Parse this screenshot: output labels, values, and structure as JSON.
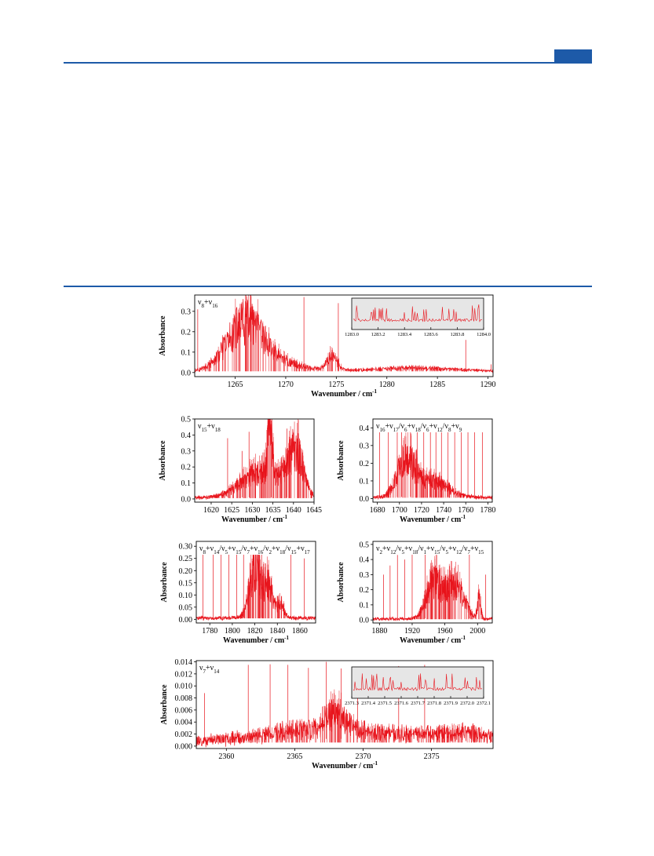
{
  "page": {
    "accent_color": "#1d5aa8",
    "trace_color": "#e8141c",
    "inset_fill": "#e6e6e6"
  },
  "chart_data": [
    {
      "type": "line",
      "band_label": "ν8+ν16",
      "ylabel": "Absorbance",
      "xlabel": "Wavenumber / cm-1",
      "xlim": [
        1261,
        1290.5
      ],
      "ylim": [
        -0.02,
        0.38
      ],
      "xticks": [
        1265,
        1270,
        1275,
        1280,
        1285,
        1290
      ],
      "yticks": [
        0.0,
        0.1,
        0.2,
        0.3
      ],
      "y_precision": 1,
      "baseline": 0.012,
      "noise": 0.008,
      "envelopes": [
        {
          "center": 1265.9,
          "width": 1.7,
          "height": 0.31
        },
        {
          "center": 1268.5,
          "width": 2.5,
          "height": 0.07
        },
        {
          "center": 1274.6,
          "width": 0.5,
          "height": 0.1
        },
        {
          "center": 1282.5,
          "width": 3.5,
          "height": 0.02
        }
      ],
      "lines": [
        {
          "x": 1261.3,
          "y": 0.31
        },
        {
          "x": 1271.8,
          "y": 0.37
        },
        {
          "x": 1275.2,
          "y": 0.34
        },
        {
          "x": 1287.8,
          "y": 0.16
        },
        {
          "x": 1290.3,
          "y": 0.04
        }
      ],
      "inset": {
        "xlim": [
          1283.0,
          1284.0
        ],
        "xticks": [
          "1283.0",
          "1283.2",
          "1283.4",
          "1283.6",
          "1283.8",
          "1284.0"
        ]
      }
    },
    {
      "type": "line",
      "band_label": "ν15+ν18",
      "ylabel": "Absorbance",
      "xlabel": "Wavenumber / cm-1",
      "xlim": [
        1616,
        1645
      ],
      "ylim": [
        -0.02,
        0.5
      ],
      "xticks": [
        1620,
        1625,
        1630,
        1635,
        1640,
        1645
      ],
      "yticks": [
        0.0,
        0.1,
        0.2,
        0.3,
        0.4,
        0.5
      ],
      "y_precision": 1,
      "baseline": 0.01,
      "noise": 0.02,
      "envelopes": [
        {
          "center": 1632.5,
          "width": 5.0,
          "height": 0.24
        },
        {
          "center": 1634.3,
          "width": 0.5,
          "height": 0.47
        },
        {
          "center": 1640.5,
          "width": 1.7,
          "height": 0.4
        }
      ],
      "lines": [
        {
          "x": 1624.0,
          "y": 0.38
        },
        {
          "x": 1627.5,
          "y": 0.3
        },
        {
          "x": 1629.2,
          "y": 0.42
        },
        {
          "x": 1634.6,
          "y": 0.49
        },
        {
          "x": 1638.4,
          "y": 0.44
        }
      ]
    },
    {
      "type": "line",
      "band_label": "ν16+ν17/ν6+ν18/ν6+ν12/ν8+ν9",
      "ylabel": "Absorbance",
      "xlabel": "Wavenumber / cm-1",
      "xlim": [
        1676,
        1784
      ],
      "ylim": [
        -0.02,
        0.45
      ],
      "xticks": [
        1680,
        1700,
        1720,
        1740,
        1760,
        1780
      ],
      "yticks": [
        0.0,
        0.1,
        0.2,
        0.3,
        0.4
      ],
      "y_precision": 1,
      "baseline": 0.01,
      "noise": 0.02,
      "envelopes": [
        {
          "center": 1706,
          "width": 8,
          "height": 0.3
        },
        {
          "center": 1730,
          "width": 14,
          "height": 0.13
        }
      ],
      "lines": [
        {
          "x": 1682,
          "y": 0.43
        },
        {
          "x": 1690,
          "y": 0.42
        },
        {
          "x": 1698,
          "y": 0.43
        },
        {
          "x": 1702,
          "y": 0.44
        },
        {
          "x": 1710,
          "y": 0.43
        },
        {
          "x": 1716,
          "y": 0.42
        },
        {
          "x": 1722,
          "y": 0.43
        },
        {
          "x": 1728,
          "y": 0.41
        },
        {
          "x": 1733,
          "y": 0.43
        },
        {
          "x": 1738,
          "y": 0.42
        },
        {
          "x": 1744,
          "y": 0.4
        },
        {
          "x": 1750,
          "y": 0.43
        },
        {
          "x": 1756,
          "y": 0.41
        },
        {
          "x": 1762,
          "y": 0.43
        },
        {
          "x": 1768,
          "y": 0.42
        },
        {
          "x": 1775,
          "y": 0.43
        }
      ]
    },
    {
      "type": "line",
      "band_label": "ν8+ν14/ν5+ν15/ν7+ν16/ν2+ν18/ν15+ν17",
      "ylabel": "Absorbance",
      "xlabel": "Wavenumber / cm-1",
      "xlim": [
        1768,
        1874
      ],
      "ylim": [
        -0.015,
        0.32
      ],
      "xticks": [
        1780,
        1800,
        1820,
        1840,
        1860
      ],
      "yticks": [
        0.0,
        0.05,
        0.1,
        0.15,
        0.2,
        0.25,
        0.3
      ],
      "y_precision": 2,
      "baseline": 0.008,
      "noise": 0.015,
      "envelopes": [
        {
          "center": 1820,
          "width": 5,
          "height": 0.28
        },
        {
          "center": 1832,
          "width": 4,
          "height": 0.19
        },
        {
          "center": 1843,
          "width": 3,
          "height": 0.08
        }
      ],
      "lines": [
        {
          "x": 1774,
          "y": 0.29
        },
        {
          "x": 1783,
          "y": 0.3
        },
        {
          "x": 1790,
          "y": 0.28
        },
        {
          "x": 1797,
          "y": 0.3
        },
        {
          "x": 1804,
          "y": 0.29
        },
        {
          "x": 1810,
          "y": 0.3
        },
        {
          "x": 1826,
          "y": 0.31
        },
        {
          "x": 1852,
          "y": 0.27
        },
        {
          "x": 1864,
          "y": 0.25
        }
      ]
    },
    {
      "type": "line",
      "band_label": "ν2+ν12/ν5+ν18/ν1+ν15/ν5+ν12/ν7+ν15",
      "ylabel": "Absorbance",
      "xlabel": "Wavenumber / cm-1",
      "xlim": [
        1872,
        2018
      ],
      "ylim": [
        -0.02,
        0.52
      ],
      "xticks": [
        1880,
        1920,
        1960,
        2000
      ],
      "yticks": [
        0.0,
        0.1,
        0.2,
        0.3,
        0.4,
        0.5
      ],
      "y_precision": 1,
      "baseline": 0.01,
      "noise": 0.02,
      "envelopes": [
        {
          "center": 1946,
          "width": 9,
          "height": 0.34
        },
        {
          "center": 1972,
          "width": 11,
          "height": 0.33
        },
        {
          "center": 2002,
          "width": 2,
          "height": 0.2
        }
      ],
      "lines": [
        {
          "x": 1885,
          "y": 0.3
        },
        {
          "x": 1893,
          "y": 0.36
        },
        {
          "x": 1902,
          "y": 0.43
        },
        {
          "x": 1911,
          "y": 0.4
        },
        {
          "x": 1920,
          "y": 0.46
        },
        {
          "x": 1936,
          "y": 0.48
        },
        {
          "x": 1990,
          "y": 0.45
        },
        {
          "x": 2010,
          "y": 0.3
        }
      ]
    },
    {
      "type": "line",
      "band_label": "ν7+ν14",
      "ylabel": "Absorbance",
      "xlabel": "Wavenumber / cm-1",
      "xlim": [
        2357.8,
        2379.5
      ],
      "ylim": [
        -0.0004,
        0.0142
      ],
      "xticks": [
        2360,
        2365,
        2370,
        2375
      ],
      "yticks": [
        0.0,
        0.002,
        0.004,
        0.006,
        0.008,
        0.01,
        0.012,
        0.014
      ],
      "y_precision": 3,
      "baseline": 0.0012,
      "noise": 0.0016,
      "envelopes": [
        {
          "center": 2366.5,
          "width": 3.5,
          "height": 0.0028
        },
        {
          "center": 2368.0,
          "width": 0.7,
          "height": 0.004
        },
        {
          "center": 2374,
          "width": 3.5,
          "height": 0.0014
        },
        {
          "center": 2377.5,
          "width": 1.5,
          "height": 0.0012
        }
      ],
      "lines": [
        {
          "x": 2358.4,
          "y": 0.0088
        },
        {
          "x": 2361.6,
          "y": 0.0135
        },
        {
          "x": 2363.2,
          "y": 0.0136
        },
        {
          "x": 2364.5,
          "y": 0.0135
        },
        {
          "x": 2366.0,
          "y": 0.013
        },
        {
          "x": 2367.3,
          "y": 0.014
        },
        {
          "x": 2368.4,
          "y": 0.0129
        },
        {
          "x": 2369.6,
          "y": 0.013
        },
        {
          "x": 2372.6,
          "y": 0.0133
        },
        {
          "x": 2374.5,
          "y": 0.0135
        }
      ],
      "inset": {
        "xlim": [
          2371.3,
          2372.1
        ],
        "xticks": [
          "2371.3",
          "2371.4",
          "2371.5",
          "2371.6",
          "2371.7",
          "2371.8",
          "2371.9",
          "2372.0",
          "2372.1"
        ]
      }
    }
  ]
}
